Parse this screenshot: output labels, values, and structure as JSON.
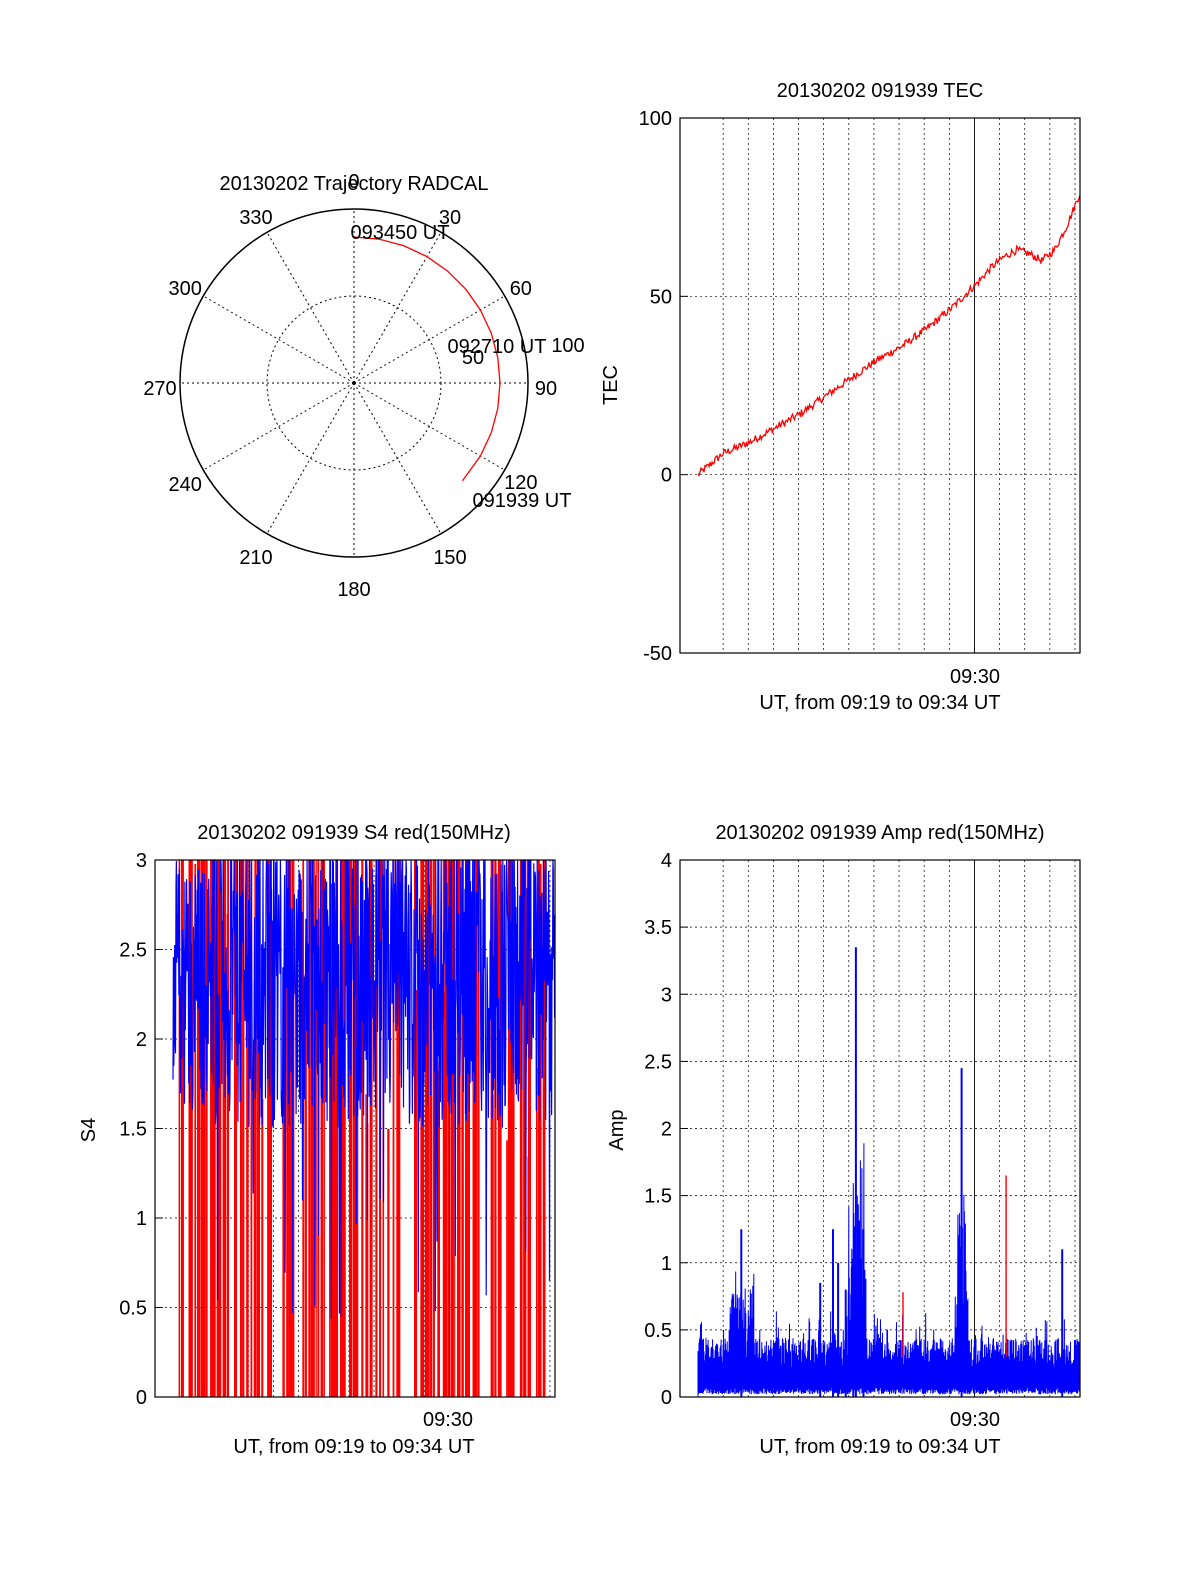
{
  "colors": {
    "trace_red": "#ff0000",
    "trace_blue": "#0000ff",
    "axis": "#000000",
    "grid": "#000000",
    "background": "#ffffff"
  },
  "chart_data": [
    {
      "type": "polar",
      "title": "20130202 Trajectory RADCAL",
      "angle_ticks": [
        "0",
        "30",
        "60",
        "90",
        "120",
        "150",
        "180",
        "210",
        "240",
        "270",
        "300",
        "330"
      ],
      "radial_tick_labels": [
        "50",
        "100"
      ],
      "track": {
        "azimuth_deg": [
          0,
          10,
          20,
          30,
          40,
          50,
          60,
          70,
          80,
          90,
          100,
          110,
          120,
          132
        ],
        "zenith_deg": [
          68,
          68,
          69,
          70,
          72,
          74,
          76,
          78,
          79,
          80,
          80,
          79,
          78,
          76
        ]
      },
      "annotations": [
        {
          "text": "093450 UT",
          "at_index": 0
        },
        {
          "text": "092710 UT",
          "at_index": 7
        },
        {
          "text": "091939 UT",
          "at_index": 13
        }
      ]
    },
    {
      "type": "line",
      "title": "20130202 091939 TEC",
      "ylabel": "TEC",
      "xlabel": "UT, from 09:19 to 09:34 UT",
      "x_tick_label": "09:30",
      "ylim": [
        -50,
        100
      ],
      "yticks": [
        "100",
        "50",
        "0",
        "-50"
      ],
      "series": [
        {
          "x_min": [
            0,
            1,
            2,
            3,
            4,
            5,
            6,
            7,
            8,
            9,
            10,
            11,
            11.5,
            12,
            12.5,
            13,
            13.5,
            14,
            14.5,
            15
          ],
          "values": [
            0,
            6,
            9,
            13,
            17,
            22,
            27,
            32,
            36,
            41,
            47,
            54,
            58,
            61,
            63,
            62,
            60,
            63,
            70,
            79
          ]
        }
      ]
    },
    {
      "type": "line",
      "title": "20130202 091939 S4 red(150MHz)",
      "ylabel": "S4",
      "xlabel": "UT, from 09:19 to 09:34 UT",
      "x_tick_label": "09:30",
      "ylim": [
        0,
        3
      ],
      "yticks": [
        "3",
        "2.5",
        "2",
        "1.5",
        "1",
        "0.5",
        "0"
      ],
      "series": [
        {
          "color_key": "trace_red",
          "description_values": "dense spikes spanning 0 to 3"
        },
        {
          "color_key": "trace_blue",
          "description_values": "dense noise between ~0.3 and 3"
        }
      ]
    },
    {
      "type": "line",
      "title": "20130202 091939 Amp red(150MHz)",
      "ylabel": "Amp",
      "xlabel": "UT, from 09:19 to 09:34 UT",
      "x_tick_label": "09:30",
      "ylim": [
        0,
        4
      ],
      "yticks": [
        "4",
        "3.5",
        "3",
        "2.5",
        "2",
        "1.5",
        "1",
        "0.5",
        "0"
      ],
      "peaks_blue": [
        {
          "x_min": 1.7,
          "value": 1.25
        },
        {
          "x_min": 6.1,
          "value": 1.0
        },
        {
          "x_min": 5.8,
          "value": 0.8
        },
        {
          "x_min": 5.5,
          "value": 1.0
        },
        {
          "x_min": 5.3,
          "value": 1.25
        },
        {
          "x_min": 4.8,
          "value": 0.85
        },
        {
          "x_min": 6.5,
          "value": 1.25
        },
        {
          "x_min": 6.2,
          "value": 3.35
        },
        {
          "x_min": 10.35,
          "value": 2.45
        },
        {
          "x_min": 14.3,
          "value": 1.1
        }
      ],
      "peaks_red": [
        {
          "x_min": 12.1,
          "value": 1.65
        },
        {
          "x_min": 8.05,
          "value": 0.78
        }
      ]
    }
  ]
}
